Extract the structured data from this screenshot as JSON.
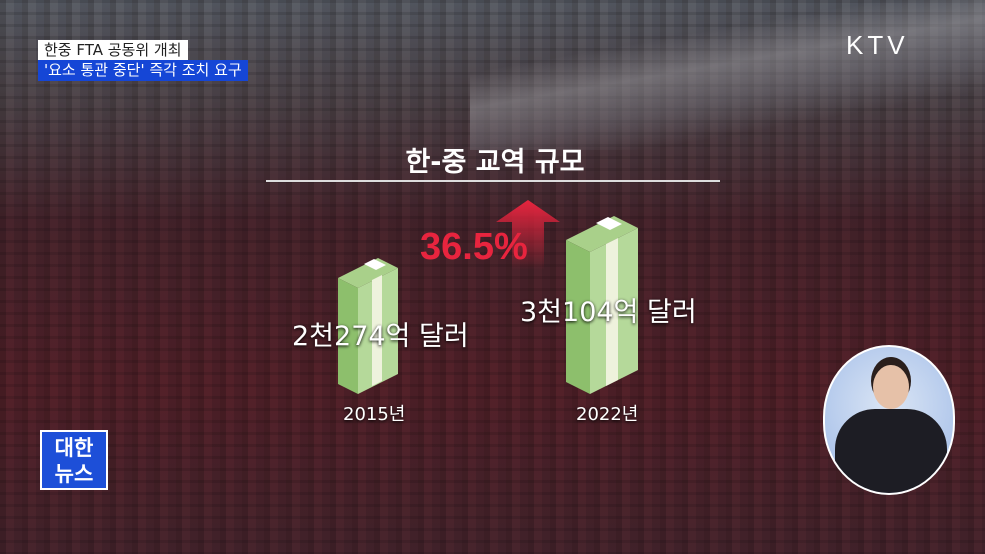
{
  "broadcast": {
    "channel_logo": "KTV",
    "program_logo": [
      "대한",
      "뉴스"
    ]
  },
  "captions": {
    "line1": "한중 FTA 공동위 개최",
    "line2": "'요소 통관 중단' 즉각 조치 요구"
  },
  "infographic": {
    "title": "한-중 교역 규모",
    "change": "36.5%",
    "change_direction": "up",
    "accent_color": "#e8243e",
    "items": [
      {
        "year": "2015년",
        "value": "2천274억 달러"
      },
      {
        "year": "2022년",
        "value": "3천104억 달러"
      }
    ]
  },
  "chart_data": {
    "type": "bar",
    "categories": [
      "2015년",
      "2022년"
    ],
    "values": [
      2274,
      3104
    ],
    "unit": "억 달러",
    "title": "한-중 교역 규모"
  }
}
